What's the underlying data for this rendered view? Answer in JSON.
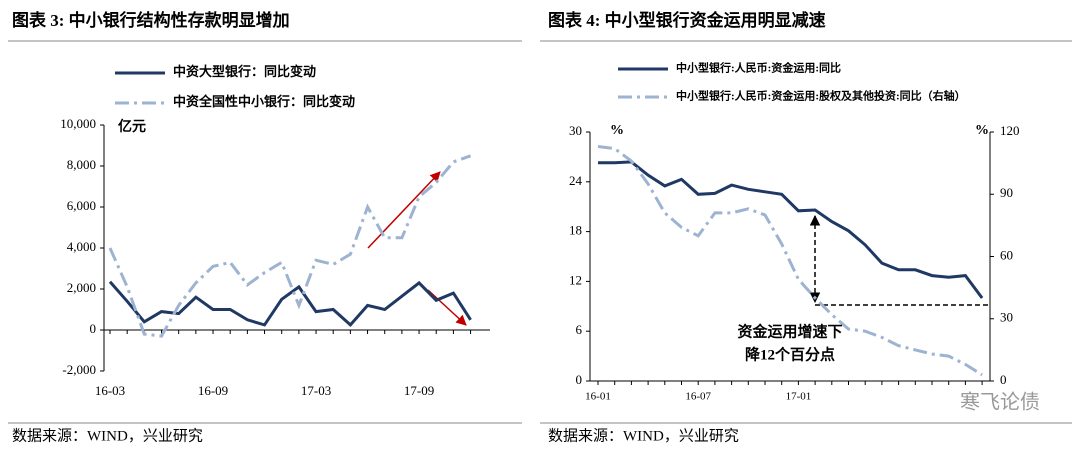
{
  "chart_data": [
    {
      "type": "line",
      "title": "图表 3:  中小银行结构性存款明显增加",
      "ylabel": "亿元",
      "categories": [
        "16-03",
        null,
        null,
        null,
        null,
        null,
        "16-09",
        null,
        null,
        null,
        null,
        null,
        "17-03",
        null,
        null,
        null,
        null,
        null,
        "17-09",
        null,
        null,
        null
      ],
      "series": [
        {
          "name": "中资大型银行：同比变动",
          "color": "#1f3864",
          "style": "solid",
          "values": [
            2350,
            1400,
            400,
            900,
            800,
            1600,
            1000,
            1000,
            500,
            250,
            1500,
            2100,
            900,
            1000,
            250,
            1200,
            1000,
            1650,
            2300,
            1450,
            1800,
            500
          ]
        },
        {
          "name": "中资全国性中小银行：同比变动",
          "color": "#9db3d1",
          "style": "dashdot",
          "values": [
            4000,
            2100,
            -200,
            -300,
            1200,
            2300,
            3100,
            3300,
            2200,
            2800,
            3300,
            1200,
            3400,
            3200,
            3700,
            6000,
            4500,
            4500,
            6500,
            7200,
            8200,
            8500
          ]
        }
      ],
      "ylim": [
        -2000,
        10000
      ],
      "yticks": [
        {
          "value": -2000,
          "label": "-2,000"
        },
        0,
        {
          "value": 2000,
          "label": "2,000"
        },
        {
          "value": 4000,
          "label": "4,000"
        },
        {
          "value": 6000,
          "label": "6,000"
        },
        {
          "value": 8000,
          "label": "8,000"
        },
        {
          "value": 10000,
          "label": "10,000"
        }
      ],
      "source": "数据来源：WIND，兴业研究"
    },
    {
      "type": "line",
      "title": "图表 4:  中小型银行资金运用明显减速",
      "ylabel": "%",
      "y2label": "%",
      "categories": [
        "16-01",
        null,
        null,
        null,
        null,
        null,
        "16-07",
        null,
        null,
        null,
        null,
        null,
        "17-01",
        null,
        null,
        null,
        null,
        null,
        null,
        null,
        null,
        null,
        null,
        null
      ],
      "series": [
        {
          "name": "中小型银行:人民币:资金运用:同比",
          "color": "#1f3864",
          "style": "solid",
          "values": [
            26.3,
            26.3,
            26.4,
            24.8,
            23.5,
            24.3,
            22.5,
            22.6,
            23.6,
            23.1,
            22.8,
            22.5,
            20.5,
            20.6,
            19.2,
            18.1,
            16.4,
            14.2,
            13.4,
            13.4,
            12.7,
            12.5,
            12.7,
            10.0
          ]
        },
        {
          "name": "中小型银行:人民币:资金运用:股权及其他投资:同比（右轴）",
          "color": "#9db3d1",
          "style": "dashdot",
          "axis": "y2",
          "values": [
            113,
            112,
            106,
            95,
            81,
            74,
            70,
            81,
            81,
            83,
            80,
            66,
            49,
            40,
            32,
            25,
            24,
            21,
            17,
            15,
            13,
            12,
            8,
            3
          ]
        }
      ],
      "ylim": [
        0,
        30
      ],
      "yticks": [
        0,
        6,
        12,
        18,
        24,
        30
      ],
      "y2lim": [
        0,
        120
      ],
      "y2ticks": [
        0,
        30,
        60,
        90,
        120
      ],
      "annotation": [
        "资金运用增速下",
        "降12个百分点"
      ],
      "source": "数据来源：WIND，兴业研究"
    }
  ],
  "watermark": "寒飞论债"
}
